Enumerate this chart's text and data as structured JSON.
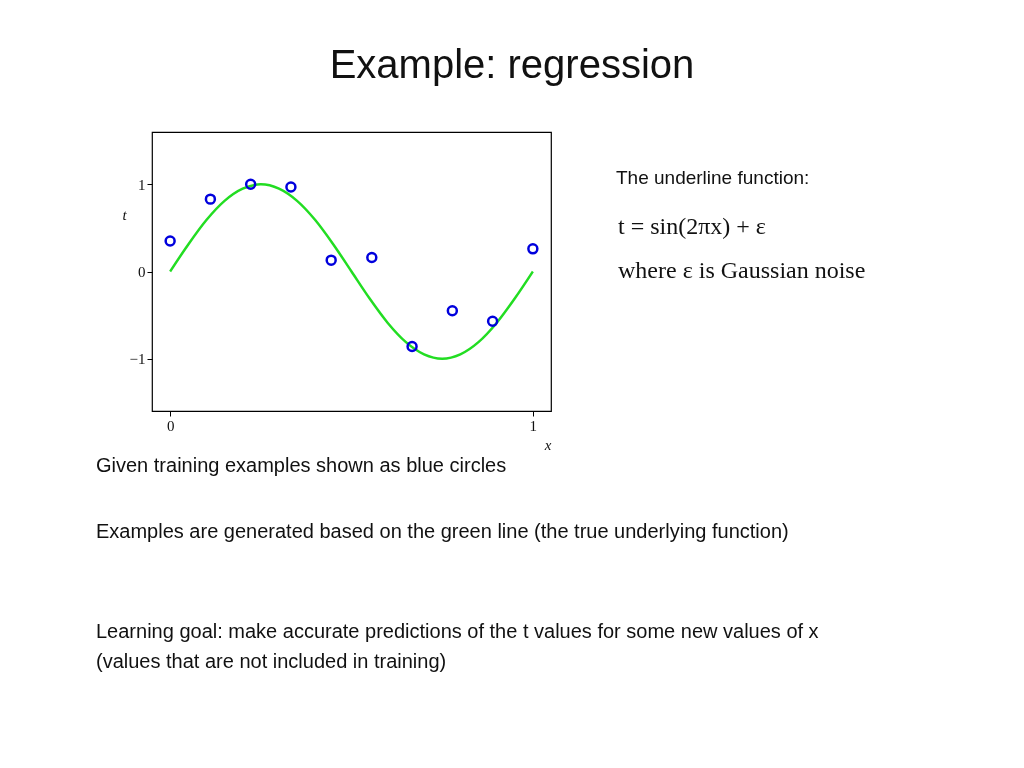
{
  "chart_data": {
    "type": "scatter",
    "title": "Example: regression",
    "xlabel": "x",
    "ylabel": "t",
    "xlim": [
      -0.05,
      1.05
    ],
    "ylim": [
      -1.6,
      1.6
    ],
    "xticks": [
      0,
      1
    ],
    "yticks": [
      {
        "value": -1,
        "label": "−1"
      },
      0,
      1
    ],
    "grid": false,
    "series": [
      {
        "type": "line",
        "color": "#22dd22",
        "x": [
          0,
          0.05,
          0.1,
          0.15,
          0.2,
          0.25,
          0.3,
          0.35,
          0.4,
          0.45,
          0.5,
          0.55,
          0.6,
          0.65,
          0.7,
          0.75,
          0.8,
          0.85,
          0.9,
          0.95,
          1
        ],
        "values": [
          0,
          0.31,
          0.59,
          0.81,
          0.95,
          1,
          0.95,
          0.81,
          0.59,
          0.31,
          0,
          -0.31,
          -0.59,
          -0.81,
          -0.95,
          -1,
          -0.95,
          -0.81,
          -0.59,
          -0.31,
          0
        ]
      },
      {
        "marker": "circle",
        "color": "#0000dd",
        "x": [
          0,
          0.111,
          0.222,
          0.333,
          0.444,
          0.556,
          0.667,
          0.778,
          0.889,
          1
        ],
        "values": [
          0.35,
          0.83,
          1.0,
          0.97,
          0.13,
          0.16,
          -0.86,
          -0.45,
          -0.57,
          0.26
        ]
      }
    ],
    "annotations": [
      "The underline function:",
      "t = sin(2πx) + ε",
      "where ε is Gaussian noise",
      "Given training examples shown as blue circles",
      "Examples are generated based on the green line (the true underlying function)",
      "Learning goal: make accurate predictions of the t values for some new values of x (values that are not included in training)"
    ]
  }
}
